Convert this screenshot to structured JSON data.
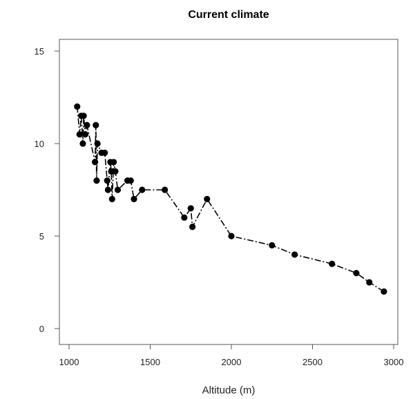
{
  "chart_data": {
    "type": "line",
    "title": "Current climate",
    "xlabel": "Altitude (m)",
    "ylabel": "",
    "xlim": [
      1000,
      3000
    ],
    "ylim": [
      0,
      15
    ],
    "x_ticks": [
      1000,
      1500,
      2000,
      2500,
      3000
    ],
    "y_ticks": [
      0,
      5,
      10,
      15
    ],
    "line_style": "dash-dot",
    "marker": "filled-circle",
    "grid": false,
    "series": [
      {
        "points": [
          [
            1050,
            12.0
          ],
          [
            1065,
            10.5
          ],
          [
            1075,
            11.5
          ],
          [
            1085,
            10.0
          ],
          [
            1090,
            11.5
          ],
          [
            1100,
            10.5
          ],
          [
            1110,
            11.0
          ],
          [
            1160,
            9.0
          ],
          [
            1165,
            11.0
          ],
          [
            1170,
            8.0
          ],
          [
            1175,
            10.0
          ],
          [
            1200,
            9.5
          ],
          [
            1220,
            9.5
          ],
          [
            1235,
            8.0
          ],
          [
            1240,
            7.5
          ],
          [
            1255,
            9.0
          ],
          [
            1260,
            8.5
          ],
          [
            1265,
            7.0
          ],
          [
            1275,
            9.0
          ],
          [
            1285,
            8.5
          ],
          [
            1300,
            7.5
          ],
          [
            1360,
            8.0
          ],
          [
            1380,
            8.0
          ],
          [
            1400,
            7.0
          ],
          [
            1450,
            7.5
          ],
          [
            1590,
            7.5
          ],
          [
            1710,
            6.0
          ],
          [
            1750,
            6.5
          ],
          [
            1760,
            5.5
          ],
          [
            1850,
            7.0
          ],
          [
            2000,
            5.0
          ],
          [
            2250,
            4.5
          ],
          [
            2390,
            4.0
          ],
          [
            2620,
            3.5
          ],
          [
            2770,
            3.0
          ],
          [
            2850,
            2.5
          ],
          [
            2940,
            2.0
          ]
        ]
      }
    ]
  }
}
